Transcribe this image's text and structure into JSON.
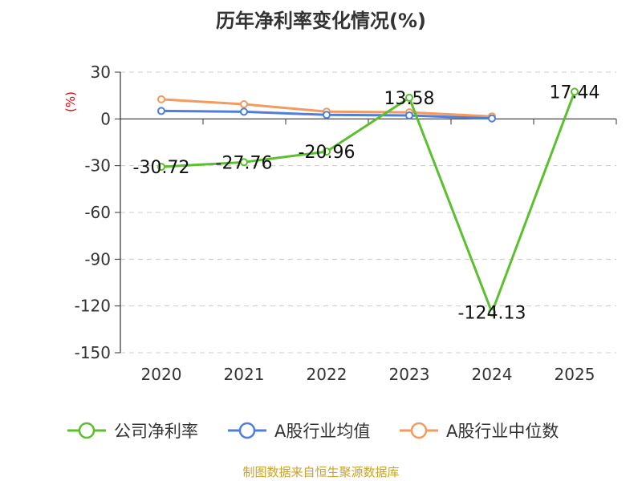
{
  "chart_data": {
    "type": "line",
    "title": "历年净利率变化情况(%)",
    "ylabel": "(%)",
    "categories": [
      "2020",
      "2021",
      "2022",
      "2023",
      "2024",
      "2025"
    ],
    "yticks": [
      30,
      0,
      -30,
      -60,
      -90,
      -120,
      -150
    ],
    "ylim": [
      -150,
      30
    ],
    "grid": true,
    "legend_position": "bottom",
    "series": [
      {
        "name": "公司净利率",
        "color": "#5cbf2e",
        "values": [
          -30.72,
          -27.76,
          -20.96,
          13.58,
          -124.13,
          17.44
        ],
        "labels": [
          "-30.72",
          "-27.76",
          "-20.96",
          "13.58",
          "-124.13",
          "17.44"
        ]
      },
      {
        "name": "A股行业均值",
        "color": "#4e7fdc",
        "values": [
          5.1,
          4.6,
          2.6,
          2.2,
          0.3,
          null
        ]
      },
      {
        "name": "A股行业中位数",
        "color": "#f39a5e",
        "values": [
          12.6,
          9.4,
          4.7,
          4.2,
          1.6,
          null
        ]
      }
    ]
  },
  "source_text": "制图数据来自恒生聚源数据库"
}
